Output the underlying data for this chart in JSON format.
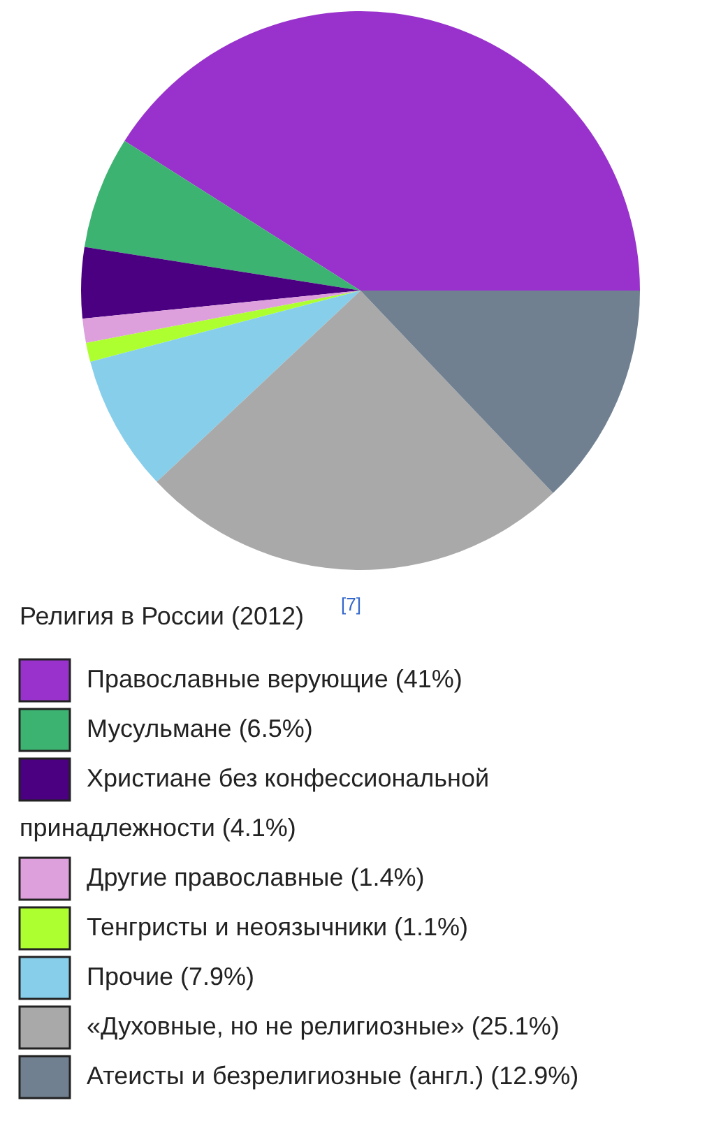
{
  "chart_data": {
    "type": "pie",
    "title": "Религия в России (2012)$^{[7]}$",
    "categories": [
      "Православные верующие",
      "Мусульмане",
      "Христиане без конфессиональной принадлежности",
      "Другие православные",
      "Тенгристы и неоязычники",
      "Прочие",
      "«Духовные, но не религиозные»",
      "Атеисты и безрелигиозные (англ.)"
    ],
    "values": [
      41,
      6.5,
      4.1,
      1.4,
      1.1,
      7.9,
      25.1,
      12.9
    ],
    "value_labels": [
      "(41%)",
      "(6.5%)",
      "(4.1%)",
      "(1.4%)",
      "(1.1%)",
      "(7.9%)",
      "(25.1%)",
      "(12.9%)"
    ],
    "colors": [
      "#9932cc",
      "#3cb371",
      "#4b0082",
      "#dda0dd",
      "#adff2f",
      "#87ceeb",
      "#a9a9a9",
      "#708090"
    ],
    "legend": "bottom"
  }
}
